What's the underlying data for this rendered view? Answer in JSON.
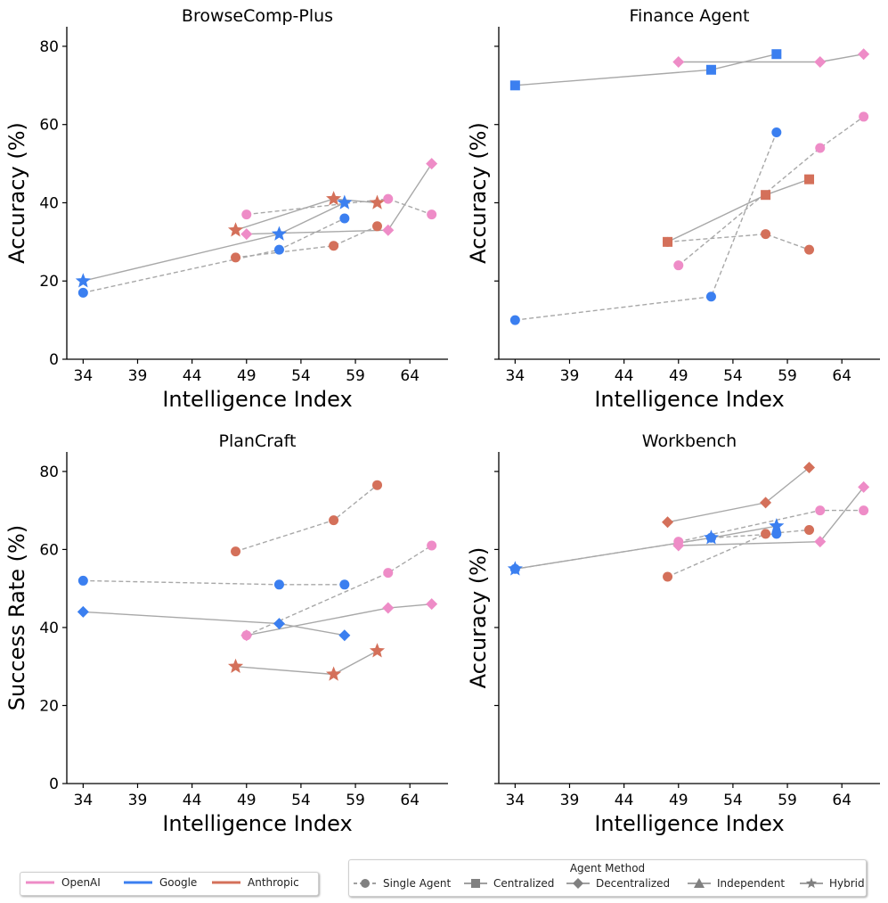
{
  "x_categories": [
    "34",
    "39",
    "44",
    "49",
    "54",
    "59",
    "64"
  ],
  "colors": {
    "OpenAI": "#ee8cc7",
    "Google": "#3b7ff0",
    "Anthropic": "#d4705a",
    "line": "#a8a8a8",
    "legend_gray": "#808080"
  },
  "legend_providers": {
    "items": [
      {
        "label": "OpenAI",
        "color": "#ee8cc7"
      },
      {
        "label": "Google",
        "color": "#3b7ff0"
      },
      {
        "label": "Anthropic",
        "color": "#d4705a"
      }
    ]
  },
  "legend_methods": {
    "title": "Agent Method",
    "items": [
      {
        "label": "Single Agent",
        "marker": "circle",
        "line": "dashed"
      },
      {
        "label": "Centralized",
        "marker": "square",
        "line": "solid"
      },
      {
        "label": "Decentralized",
        "marker": "diamond",
        "line": "solid"
      },
      {
        "label": "Independent",
        "marker": "triangle",
        "line": "solid"
      },
      {
        "label": "Hybrid",
        "marker": "star",
        "line": "solid"
      }
    ]
  },
  "chart_data": [
    {
      "type": "scatter",
      "title": "BrowseComp-Plus",
      "xlabel": "Intelligence Index",
      "ylabel": "Accuracy (%)",
      "xlim": [
        32.5,
        67.5
      ],
      "ylim": [
        0,
        85
      ],
      "xticks": [
        34,
        39,
        44,
        49,
        54,
        59,
        64
      ],
      "yticks": [
        0,
        20,
        40,
        60,
        80
      ],
      "show_yticklabels": true,
      "series": [
        {
          "provider": "Google",
          "method": "Single Agent",
          "x": [
            34,
            52,
            58
          ],
          "y": [
            17,
            28,
            36
          ]
        },
        {
          "provider": "Google",
          "method": "Hybrid",
          "x": [
            34,
            52,
            58
          ],
          "y": [
            20,
            32,
            40
          ]
        },
        {
          "provider": "OpenAI",
          "method": "Single Agent",
          "x": [
            49,
            62,
            66
          ],
          "y": [
            37,
            41,
            37
          ]
        },
        {
          "provider": "OpenAI",
          "method": "Decentralized",
          "x": [
            49,
            62,
            66
          ],
          "y": [
            32,
            33,
            50
          ]
        },
        {
          "provider": "Anthropic",
          "method": "Single Agent",
          "x": [
            48,
            57,
            61
          ],
          "y": [
            26,
            29,
            34
          ]
        },
        {
          "provider": "Anthropic",
          "method": "Hybrid",
          "x": [
            48,
            57,
            61
          ],
          "y": [
            33,
            41,
            40
          ]
        }
      ]
    },
    {
      "type": "scatter",
      "title": "Finance Agent",
      "xlabel": "Intelligence Index",
      "ylabel": "Accuracy (%)",
      "xlim": [
        32.5,
        67.5
      ],
      "ylim": [
        0,
        85
      ],
      "xticks": [
        34,
        39,
        44,
        49,
        54,
        59,
        64
      ],
      "yticks": [
        0,
        20,
        40,
        60,
        80
      ],
      "show_yticklabels": false,
      "series": [
        {
          "provider": "Google",
          "method": "Centralized",
          "x": [
            34,
            52,
            58
          ],
          "y": [
            70,
            74,
            78
          ]
        },
        {
          "provider": "Google",
          "method": "Single Agent",
          "x": [
            34,
            52,
            58
          ],
          "y": [
            10,
            16,
            58
          ]
        },
        {
          "provider": "OpenAI",
          "method": "Decentralized",
          "x": [
            49,
            62,
            66
          ],
          "y": [
            76,
            76,
            78
          ]
        },
        {
          "provider": "OpenAI",
          "method": "Single Agent",
          "x": [
            49,
            62,
            66
          ],
          "y": [
            24,
            54,
            62
          ]
        },
        {
          "provider": "Anthropic",
          "method": "Centralized",
          "x": [
            48,
            57,
            61
          ],
          "y": [
            30,
            42,
            46
          ]
        },
        {
          "provider": "Anthropic",
          "method": "Single Agent",
          "x": [
            48,
            57,
            61
          ],
          "y": [
            30,
            32,
            28
          ]
        }
      ]
    },
    {
      "type": "scatter",
      "title": "PlanCraft",
      "xlabel": "Intelligence Index",
      "ylabel": "Success Rate (%)",
      "xlim": [
        32.5,
        67.5
      ],
      "ylim": [
        0,
        85
      ],
      "xticks": [
        34,
        39,
        44,
        49,
        54,
        59,
        64
      ],
      "yticks": [
        0,
        20,
        40,
        60,
        80
      ],
      "show_yticklabels": true,
      "series": [
        {
          "provider": "Google",
          "method": "Single Agent",
          "x": [
            34,
            52,
            58
          ],
          "y": [
            52,
            51,
            51
          ]
        },
        {
          "provider": "Google",
          "method": "Decentralized",
          "x": [
            34,
            52,
            58
          ],
          "y": [
            44,
            41,
            38
          ]
        },
        {
          "provider": "OpenAI",
          "method": "Single Agent",
          "x": [
            49,
            62,
            66
          ],
          "y": [
            38,
            54,
            61
          ]
        },
        {
          "provider": "OpenAI",
          "method": "Decentralized",
          "x": [
            49,
            62,
            66
          ],
          "y": [
            38,
            45,
            46
          ]
        },
        {
          "provider": "Anthropic",
          "method": "Single Agent",
          "x": [
            48,
            57,
            61
          ],
          "y": [
            59.5,
            67.5,
            76.5
          ]
        },
        {
          "provider": "Anthropic",
          "method": "Hybrid",
          "x": [
            48,
            57,
            61
          ],
          "y": [
            30,
            28,
            34
          ]
        }
      ]
    },
    {
      "type": "scatter",
      "title": "Workbench",
      "xlabel": "Intelligence Index",
      "ylabel": "Accuracy (%)",
      "xlim": [
        32.5,
        67.5
      ],
      "ylim": [
        0,
        85
      ],
      "xticks": [
        34,
        39,
        44,
        49,
        54,
        59,
        64
      ],
      "yticks": [
        0,
        20,
        40,
        60,
        80
      ],
      "show_yticklabels": false,
      "series": [
        {
          "provider": "Google",
          "method": "Hybrid",
          "x": [
            34,
            52,
            58
          ],
          "y": [
            55,
            63,
            66
          ]
        },
        {
          "provider": "Google",
          "method": "Single Agent",
          "x": [
            34,
            52,
            58
          ],
          "y": [
            55,
            63,
            64
          ]
        },
        {
          "provider": "OpenAI",
          "method": "Decentralized",
          "x": [
            49,
            62,
            66
          ],
          "y": [
            61,
            62,
            76
          ]
        },
        {
          "provider": "OpenAI",
          "method": "Single Agent",
          "x": [
            49,
            62,
            66
          ],
          "y": [
            62,
            70,
            70
          ]
        },
        {
          "provider": "Anthropic",
          "method": "Decentralized",
          "x": [
            48,
            57,
            61
          ],
          "y": [
            67,
            72,
            81
          ]
        },
        {
          "provider": "Anthropic",
          "method": "Single Agent",
          "x": [
            48,
            57,
            61
          ],
          "y": [
            53,
            64,
            65
          ]
        }
      ]
    }
  ]
}
